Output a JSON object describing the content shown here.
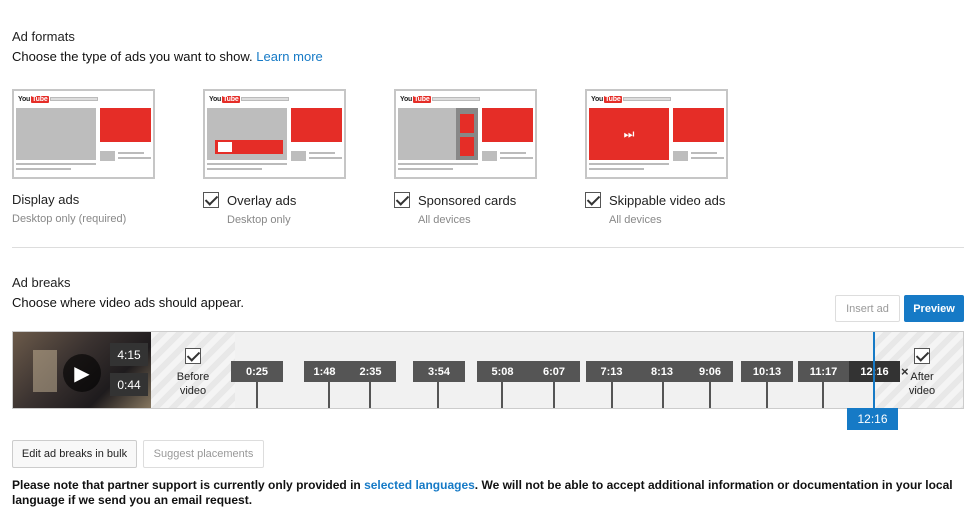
{
  "ad_formats": {
    "title": "Ad formats",
    "subtitle": "Choose the type of ads you want to show.",
    "learn_more": "Learn more",
    "logo_text": "You",
    "logo_tube": "Tube",
    "items": [
      {
        "label": "Display ads",
        "sub": "Desktop only (required)",
        "checked": false
      },
      {
        "label": "Overlay ads",
        "sub": "Desktop only",
        "checked": true
      },
      {
        "label": "Sponsored cards",
        "sub": "All devices",
        "checked": true
      },
      {
        "label": "Skippable video ads",
        "sub": "All devices",
        "checked": true
      }
    ]
  },
  "ad_breaks": {
    "title": "Ad breaks",
    "subtitle": "Choose where video ads should appear.",
    "insert_ad": "Insert ad",
    "preview": "Preview",
    "thumb_time_top": "4:15",
    "thumb_time_bottom": "0:44",
    "before_video": "Before video",
    "after_video": "After video",
    "close_x": "×",
    "markers": [
      "0:25",
      "1:48",
      "2:35",
      "3:54",
      "5:08",
      "6:07",
      "7:13",
      "8:13",
      "9:06",
      "10:13",
      "11:17",
      "12:16"
    ],
    "playhead": "12:16"
  },
  "buttons": {
    "edit_bulk": "Edit ad breaks in bulk",
    "suggest": "Suggest placements"
  },
  "note": {
    "part1": "Please note that partner support is currently only provided in ",
    "link": "selected languages",
    "part2": ". We will not be able to accept additional information or documentation in your local language if we send you an email request."
  },
  "colors": {
    "accent": "#167ac6",
    "youtube_red": "#e52d27"
  }
}
